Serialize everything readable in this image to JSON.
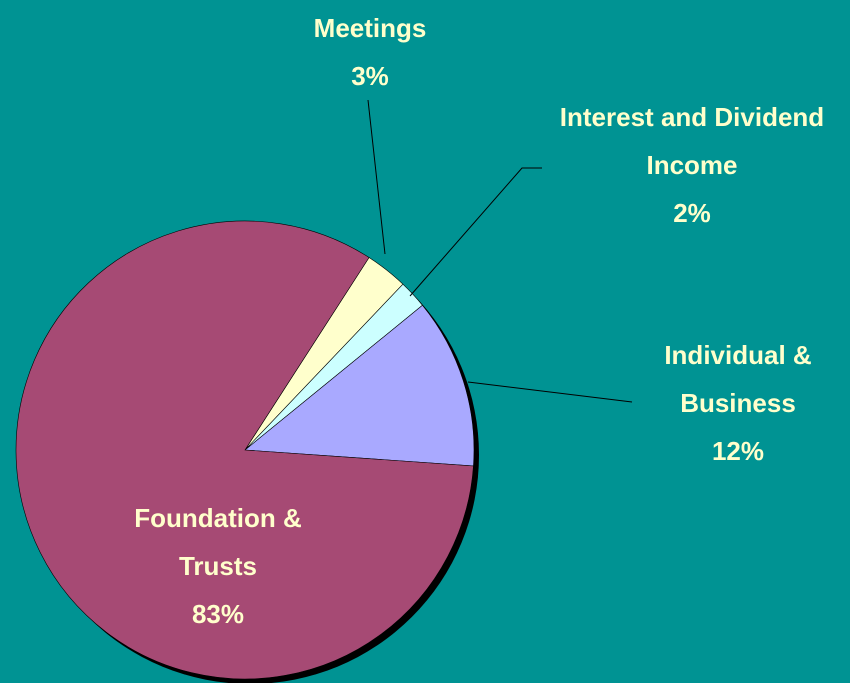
{
  "chart_data": {
    "type": "pie",
    "categories": [
      "Meetings",
      "Interest and Dividend Income",
      "Individual & Business",
      "Foundation & Trusts"
    ],
    "values": [
      3,
      2,
      12,
      83
    ],
    "value_labels": [
      "3%",
      "2%",
      "12%",
      "83%"
    ],
    "colors": [
      "#ffffcc",
      "#ccffff",
      "#a9a9ff",
      "#a64a74"
    ]
  }
}
